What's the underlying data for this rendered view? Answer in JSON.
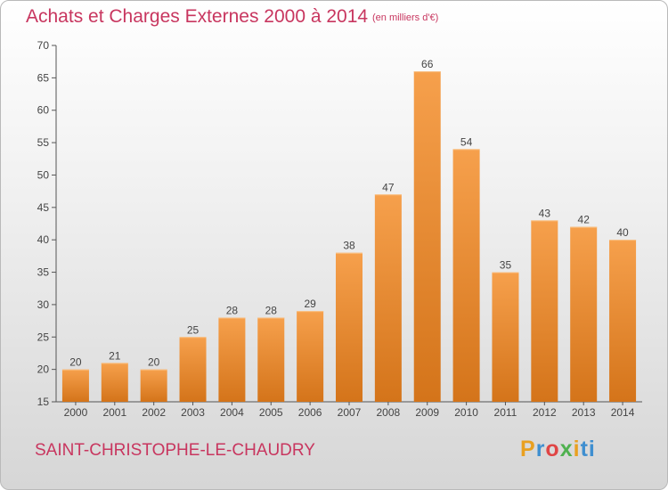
{
  "header": {
    "title": "Achats et Charges Externes 2000 à 2014",
    "unit": "(en milliers d'€)"
  },
  "footer": {
    "commune": "SAINT-CHRISTOPHE-LE-CHAUDRY",
    "logo": "Proxiti"
  },
  "colors": {
    "bar_light": "#f6a04c",
    "bar_dark": "#d4741a",
    "title": "#c8365f",
    "axis": "#555555"
  },
  "chart_data": {
    "type": "bar",
    "categories": [
      "2000",
      "2001",
      "2002",
      "2003",
      "2004",
      "2005",
      "2006",
      "2007",
      "2008",
      "2009",
      "2010",
      "2011",
      "2012",
      "2013",
      "2014"
    ],
    "values": [
      20,
      21,
      20,
      25,
      28,
      28,
      29,
      38,
      47,
      66,
      54,
      35,
      43,
      42,
      40
    ],
    "title": "Achats et Charges Externes 2000 à 2014",
    "ylim": [
      15,
      70
    ],
    "yticks": [
      15,
      20,
      25,
      30,
      35,
      40,
      45,
      50,
      55,
      60,
      65,
      70
    ],
    "grid": false,
    "data_labels": true
  }
}
